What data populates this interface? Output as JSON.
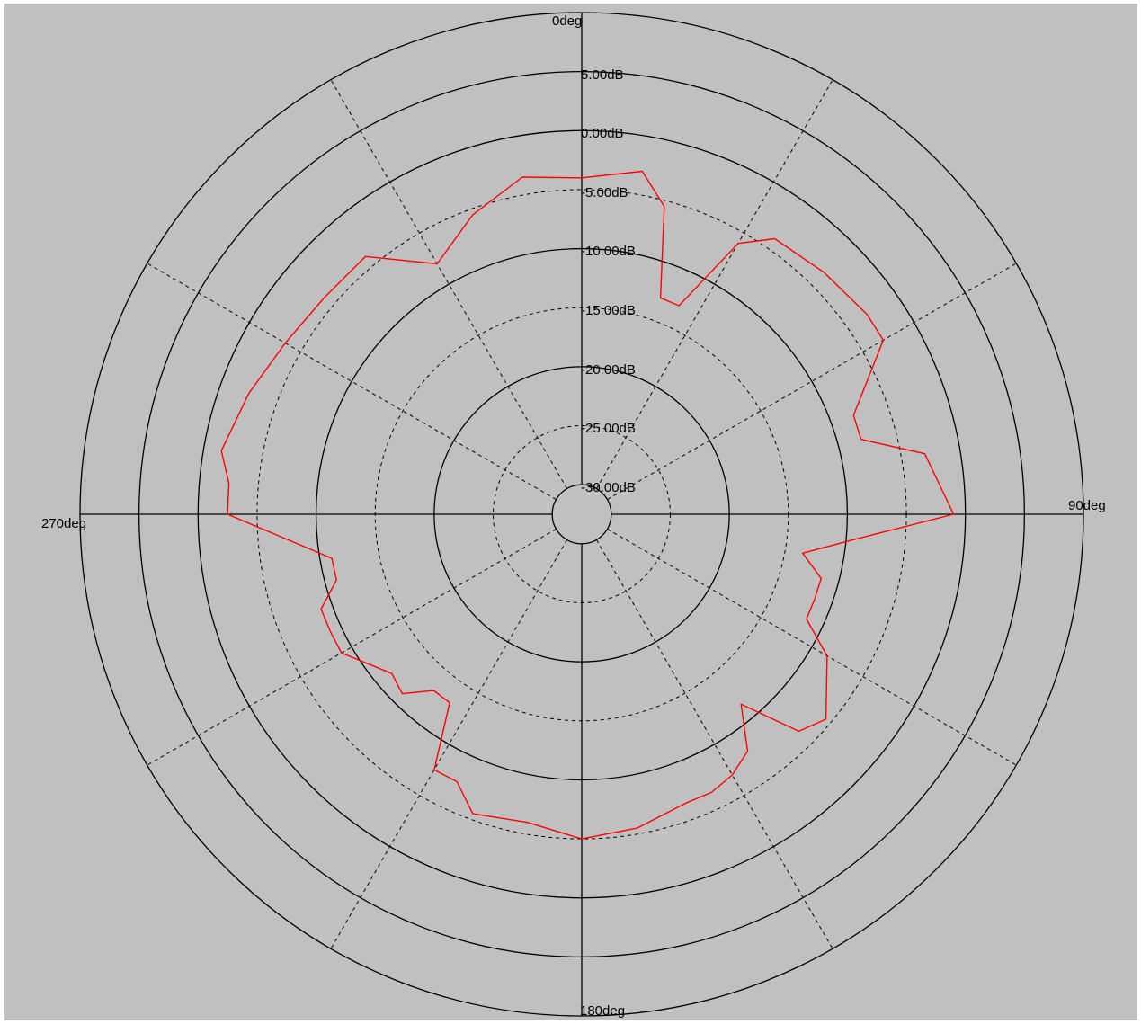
{
  "colors": {
    "background": "#c0c0c0",
    "grid": "#000000",
    "trace": "#ff0000"
  },
  "chart_data": {
    "type": "polar-line",
    "title": "",
    "angle_unit": "deg",
    "angle_zero": "top",
    "angle_direction": "clockwise",
    "angle_labels": [
      "0deg",
      "90deg",
      "180deg",
      "270deg"
    ],
    "radial_labels": [
      "5.00dB",
      "0.00dB",
      "-5.00dB",
      "-10.00dB",
      "-15.00dB",
      "-20.00dB",
      "-25.00dB",
      "-30.00dB"
    ],
    "radial_ticks": [
      5,
      0,
      -5,
      -10,
      -15,
      -20,
      -25,
      -30
    ],
    "rlim": [
      -32.5,
      10
    ],
    "major_rings": [
      5,
      0,
      -10,
      -20
    ],
    "minor_rings": [
      -5,
      -15,
      -25
    ],
    "spoke_step_deg": 30,
    "series": [
      {
        "color": "#ff0000",
        "theta": [
          0,
          10,
          15,
          20,
          25,
          30,
          35,
          45,
          55,
          60,
          70,
          75,
          80,
          90,
          95,
          100,
          105,
          110,
          115,
          120,
          130,
          135,
          140,
          145,
          150,
          155,
          160,
          170,
          180,
          190,
          200,
          205,
          210,
          215,
          220,
          225,
          230,
          240,
          245,
          250,
          255,
          260,
          270,
          275,
          280,
          290,
          300,
          310,
          320,
          330,
          340,
          350,
          360
        ],
        "r": [
          -4,
          -3,
          -5.5,
          -13,
          -13,
          -6,
          -4,
          -3.5,
          -3,
          -3,
          -8,
          -8,
          -3,
          -1,
          -9,
          -13.5,
          -11.5,
          -11.5,
          -11.5,
          -8.5,
          -5.5,
          -6.5,
          -11.5,
          -8,
          -7,
          -6.5,
          -6.5,
          -5.5,
          -5,
          -6,
          -5.5,
          -7.5,
          -7.5,
          -13,
          -13,
          -11,
          -11.5,
          -9,
          -9,
          -9,
          -11,
          -11,
          -2.5,
          -2.5,
          -1.5,
          -2.5,
          -3.5,
          -4,
          -4,
          -8,
          -5.5,
          -3.5,
          -4
        ]
      }
    ]
  }
}
